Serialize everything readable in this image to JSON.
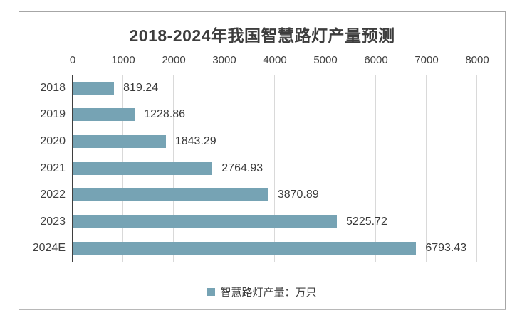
{
  "chart_data": {
    "type": "bar",
    "orientation": "horizontal",
    "title": "2018-2024年我国智慧路灯产量预测",
    "categories": [
      "2018",
      "2019",
      "2020",
      "2021",
      "2022",
      "2023",
      "2024E"
    ],
    "values": [
      819.24,
      1228.86,
      1843.29,
      2764.93,
      3870.89,
      5225.72,
      6793.43
    ],
    "value_labels": [
      "819.24",
      "1228.86",
      "1843.29",
      "2764.93",
      "3870.89",
      "5225.72",
      "6793.43"
    ],
    "xlim": [
      0,
      8000
    ],
    "x_ticks": [
      0,
      1000,
      2000,
      3000,
      4000,
      5000,
      6000,
      7000,
      8000
    ],
    "legend": "智慧路灯产量：万只",
    "legend_position": "bottom",
    "grid": "vertical-only",
    "colors": {
      "bar": "#76a3b4",
      "gridline": "#d9d9d9",
      "axis_line": "#3f3f3f",
      "text": "#404040",
      "card_border": "#a6a6a6",
      "background": "#ffffff"
    }
  }
}
